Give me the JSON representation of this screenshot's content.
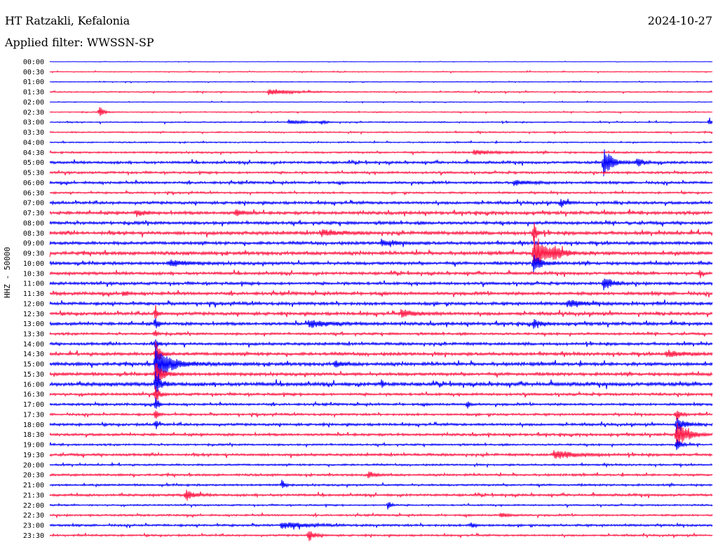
{
  "header": {
    "station": "HT Ratzakli, Kefalonia",
    "date": "2024-10-27",
    "filter": "Applied filter: WWSSN-SP"
  },
  "chart_data": {
    "type": "line",
    "title": "HT Ratzakli, Kefalonia",
    "ylabel": "HHZ - 50000",
    "trace_colors": [
      "#0000ff",
      "#ff1744"
    ],
    "rows": [
      {
        "label": "00:00",
        "noise": 0.3
      },
      {
        "label": "00:30",
        "noise": 0.6
      },
      {
        "label": "01:00",
        "noise": 0.5
      },
      {
        "label": "01:30",
        "noise": 0.8,
        "events": [
          {
            "t": 0.33,
            "a": 4,
            "d": 0.03
          }
        ]
      },
      {
        "label": "02:00",
        "noise": 0.5
      },
      {
        "label": "02:30",
        "noise": 0.7,
        "events": [
          {
            "t": 0.075,
            "a": 9,
            "d": 0.005
          }
        ]
      },
      {
        "label": "03:00",
        "noise": 0.8,
        "events": [
          {
            "t": 0.36,
            "a": 3,
            "d": 0.02
          },
          {
            "t": 0.41,
            "a": 4,
            "d": 0.005
          },
          {
            "t": 0.995,
            "a": 8,
            "d": 0.003
          }
        ]
      },
      {
        "label": "03:30",
        "noise": 0.9
      },
      {
        "label": "04:00",
        "noise": 0.8
      },
      {
        "label": "04:30",
        "noise": 1.2,
        "events": [
          {
            "t": 0.64,
            "a": 3,
            "d": 0.03
          }
        ]
      },
      {
        "label": "05:00",
        "noise": 1.6,
        "events": [
          {
            "t": 0.835,
            "a": 22,
            "d": 0.012
          },
          {
            "t": 0.885,
            "a": 7,
            "d": 0.01
          }
        ]
      },
      {
        "label": "05:30",
        "noise": 1.4
      },
      {
        "label": "06:00",
        "noise": 1.6,
        "events": [
          {
            "t": 0.7,
            "a": 4,
            "d": 0.02
          }
        ]
      },
      {
        "label": "06:30",
        "noise": 1.2
      },
      {
        "label": "07:00",
        "noise": 1.8,
        "events": [
          {
            "t": 0.77,
            "a": 5,
            "d": 0.01
          }
        ]
      },
      {
        "label": "07:30",
        "noise": 2.0,
        "events": [
          {
            "t": 0.13,
            "a": 5,
            "d": 0.01
          },
          {
            "t": 0.28,
            "a": 5,
            "d": 0.01
          }
        ]
      },
      {
        "label": "08:00",
        "noise": 2.0
      },
      {
        "label": "08:30",
        "noise": 2.2,
        "events": [
          {
            "t": 0.41,
            "a": 5,
            "d": 0.02
          },
          {
            "t": 0.73,
            "a": 18,
            "d": 0.004
          }
        ]
      },
      {
        "label": "09:00",
        "noise": 2.0,
        "events": [
          {
            "t": 0.5,
            "a": 5,
            "d": 0.02
          }
        ]
      },
      {
        "label": "09:30",
        "noise": 2.2,
        "events": [
          {
            "t": 0.73,
            "a": 25,
            "d": 0.02
          },
          {
            "t": 0.76,
            "a": 8,
            "d": 0.01
          }
        ]
      },
      {
        "label": "10:00",
        "noise": 2.0,
        "events": [
          {
            "t": 0.73,
            "a": 16,
            "d": 0.01
          },
          {
            "t": 0.18,
            "a": 5,
            "d": 0.02
          }
        ]
      },
      {
        "label": "10:30",
        "noise": 1.8,
        "events": [
          {
            "t": 0.98,
            "a": 8,
            "d": 0.003
          }
        ]
      },
      {
        "label": "11:00",
        "noise": 1.8,
        "events": [
          {
            "t": 0.835,
            "a": 12,
            "d": 0.01
          }
        ]
      },
      {
        "label": "11:30",
        "noise": 2.0,
        "events": [
          {
            "t": 0.11,
            "a": 5,
            "d": 0.005
          }
        ]
      },
      {
        "label": "12:00",
        "noise": 2.0,
        "events": [
          {
            "t": 0.78,
            "a": 5,
            "d": 0.02
          }
        ]
      },
      {
        "label": "12:30",
        "noise": 2.0,
        "events": [
          {
            "t": 0.159,
            "a": 15,
            "d": 0.003
          },
          {
            "t": 0.53,
            "a": 5,
            "d": 0.02
          }
        ]
      },
      {
        "label": "13:00",
        "noise": 2.0,
        "events": [
          {
            "t": 0.159,
            "a": 14,
            "d": 0.003
          },
          {
            "t": 0.39,
            "a": 5,
            "d": 0.03
          },
          {
            "t": 0.73,
            "a": 6,
            "d": 0.01
          }
        ]
      },
      {
        "label": "13:30",
        "noise": 1.5,
        "events": [
          {
            "t": 0.159,
            "a": 10,
            "d": 0.003
          }
        ]
      },
      {
        "label": "14:00",
        "noise": 1.8,
        "events": [
          {
            "t": 0.159,
            "a": 12,
            "d": 0.003
          }
        ]
      },
      {
        "label": "14:30",
        "noise": 2.0,
        "events": [
          {
            "t": 0.159,
            "a": 20,
            "d": 0.006
          },
          {
            "t": 0.93,
            "a": 5,
            "d": 0.02
          }
        ]
      },
      {
        "label": "15:00",
        "noise": 2.2,
        "events": [
          {
            "t": 0.159,
            "a": 28,
            "d": 0.02
          },
          {
            "t": 0.43,
            "a": 5,
            "d": 0.01
          }
        ]
      },
      {
        "label": "15:30",
        "noise": 2.0,
        "events": [
          {
            "t": 0.159,
            "a": 18,
            "d": 0.01
          }
        ]
      },
      {
        "label": "16:00",
        "noise": 2.4,
        "events": [
          {
            "t": 0.159,
            "a": 22,
            "d": 0.006
          },
          {
            "t": 0.5,
            "a": 8,
            "d": 0.003
          }
        ]
      },
      {
        "label": "16:30",
        "noise": 1.6,
        "events": [
          {
            "t": 0.159,
            "a": 16,
            "d": 0.005
          }
        ]
      },
      {
        "label": "17:00",
        "noise": 1.5,
        "events": [
          {
            "t": 0.159,
            "a": 14,
            "d": 0.004
          },
          {
            "t": 0.63,
            "a": 8,
            "d": 0.003
          }
        ]
      },
      {
        "label": "17:30",
        "noise": 1.4,
        "events": [
          {
            "t": 0.159,
            "a": 12,
            "d": 0.004
          },
          {
            "t": 0.945,
            "a": 10,
            "d": 0.006
          }
        ]
      },
      {
        "label": "18:00",
        "noise": 1.6,
        "events": [
          {
            "t": 0.159,
            "a": 10,
            "d": 0.003
          },
          {
            "t": 0.945,
            "a": 14,
            "d": 0.01
          }
        ]
      },
      {
        "label": "18:30",
        "noise": 1.6,
        "events": [
          {
            "t": 0.945,
            "a": 20,
            "d": 0.015
          }
        ]
      },
      {
        "label": "19:00",
        "noise": 1.2,
        "events": [
          {
            "t": 0.945,
            "a": 10,
            "d": 0.006
          }
        ]
      },
      {
        "label": "19:30",
        "noise": 1.6,
        "events": [
          {
            "t": 0.76,
            "a": 6,
            "d": 0.03
          }
        ]
      },
      {
        "label": "20:00",
        "noise": 1.2
      },
      {
        "label": "20:30",
        "noise": 1.4,
        "events": [
          {
            "t": 0.48,
            "a": 5,
            "d": 0.01
          }
        ]
      },
      {
        "label": "21:00",
        "noise": 1.3,
        "events": [
          {
            "t": 0.35,
            "a": 8,
            "d": 0.004
          }
        ]
      },
      {
        "label": "21:30",
        "noise": 1.5,
        "events": [
          {
            "t": 0.205,
            "a": 9,
            "d": 0.01
          }
        ]
      },
      {
        "label": "22:00",
        "noise": 1.0,
        "events": [
          {
            "t": 0.51,
            "a": 8,
            "d": 0.004
          }
        ]
      },
      {
        "label": "22:30",
        "noise": 1.2,
        "events": [
          {
            "t": 0.68,
            "a": 4,
            "d": 0.01
          }
        ]
      },
      {
        "label": "23:00",
        "noise": 1.4,
        "events": [
          {
            "t": 0.35,
            "a": 5,
            "d": 0.03
          },
          {
            "t": 0.635,
            "a": 6,
            "d": 0.005
          }
        ]
      },
      {
        "label": "23:30",
        "noise": 1.2,
        "events": [
          {
            "t": 0.39,
            "a": 9,
            "d": 0.008
          }
        ]
      }
    ]
  }
}
